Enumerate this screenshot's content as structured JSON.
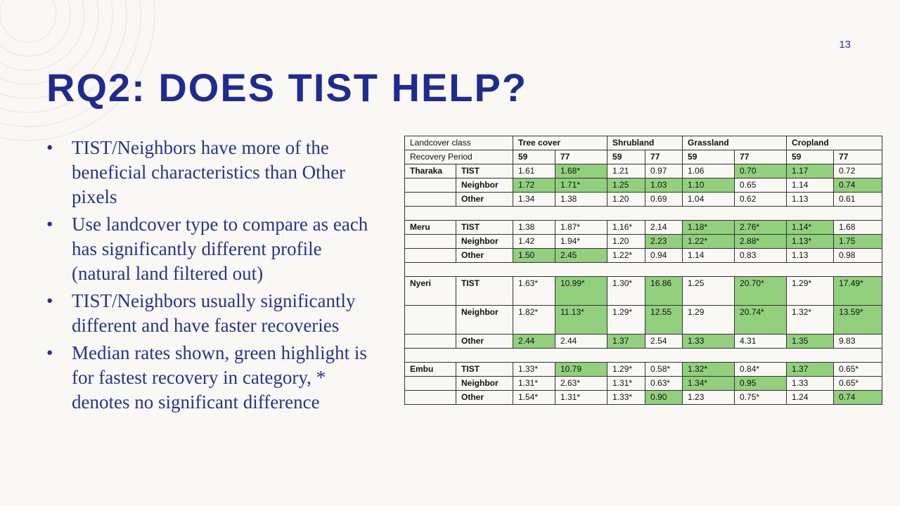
{
  "slide": {
    "number": "13",
    "title": "RQ2: DOES TIST HELP?",
    "accent": "#1f2b8f",
    "highlight": "#92d07e"
  },
  "bullets": [
    "TIST/Neighbors have more of the beneficial characteristics than Other pixels",
    "Use landcover type to compare as each has significantly different profile (natural land filtered out)",
    "TIST/Neighbors usually significantly different and have faster recoveries",
    "Median rates shown, green highlight is for fastest recovery in category, * denotes no significant difference"
  ],
  "bullet_symbol": "•",
  "table": {
    "header1": {
      "label": "Landcover class",
      "classes": [
        "Tree cover",
        "Shrubland",
        "Grassland",
        "Cropland"
      ]
    },
    "header2": {
      "label": "Recovery Period",
      "periods": [
        "59",
        "77",
        "59",
        "77",
        "59",
        "77",
        "59",
        "77"
      ]
    },
    "regions": [
      {
        "name": "Tharaka",
        "rows": [
          {
            "group": "TIST",
            "values": [
              "1.61",
              "1.68*",
              "1.21",
              "0.97",
              "1.06",
              "0.70",
              "1.17",
              "0.72"
            ],
            "green": [
              false,
              true,
              false,
              false,
              false,
              true,
              true,
              false
            ]
          },
          {
            "group": "Neighbor",
            "values": [
              "1.72",
              "1.71*",
              "1.25",
              "1.03",
              "1.10",
              "0.65",
              "1.14",
              "0.74"
            ],
            "green": [
              true,
              true,
              true,
              true,
              true,
              false,
              false,
              true
            ]
          },
          {
            "group": "Other",
            "values": [
              "1.34",
              "1.38",
              "1.20",
              "0.69",
              "1.04",
              "0.62",
              "1.13",
              "0.61"
            ],
            "green": [
              false,
              false,
              false,
              false,
              false,
              false,
              false,
              false
            ]
          }
        ]
      },
      {
        "name": "Meru",
        "rows": [
          {
            "group": "TIST",
            "values": [
              "1.38",
              "1.87*",
              "1.16*",
              "2.14",
              "1.18*",
              "2.76*",
              "1.14*",
              "1.68"
            ],
            "green": [
              false,
              false,
              false,
              false,
              true,
              true,
              true,
              false
            ]
          },
          {
            "group": "Neighbor",
            "values": [
              "1.42",
              "1.94*",
              "1.20",
              "2.23",
              "1.22*",
              "2.88*",
              "1.13*",
              "1.75"
            ],
            "green": [
              false,
              false,
              false,
              true,
              true,
              true,
              true,
              true
            ]
          },
          {
            "group": "Other",
            "values": [
              "1.50",
              "2.45",
              "1.22*",
              "0.94",
              "1.14",
              "0.83",
              "1.13",
              "0.98"
            ],
            "green": [
              true,
              true,
              false,
              false,
              false,
              false,
              false,
              false
            ]
          }
        ]
      },
      {
        "name": "Nyeri",
        "rows": [
          {
            "group": "TIST",
            "values": [
              "1.63*",
              "10.99*",
              "1.30*",
              "16.86",
              "1.25",
              "20.70*",
              "1.29*",
              "17.49*"
            ],
            "green": [
              false,
              true,
              false,
              true,
              false,
              true,
              false,
              true
            ]
          },
          {
            "group": "Neighbor",
            "values": [
              "1.82*",
              "11.13*",
              "1.29*",
              "12.55",
              "1.29",
              "20.74*",
              "1.32*",
              "13.59*"
            ],
            "green": [
              false,
              true,
              false,
              true,
              false,
              true,
              false,
              true
            ]
          },
          {
            "group": "Other",
            "values": [
              "2.44",
              "2.44",
              "1.37",
              "2.54",
              "1.33",
              "4.31",
              "1.35",
              "9.83"
            ],
            "green": [
              true,
              false,
              true,
              false,
              true,
              false,
              true,
              false
            ]
          }
        ]
      },
      {
        "name": "Embu",
        "rows": [
          {
            "group": "TIST",
            "values": [
              "1.33*",
              "10.79",
              "1.29*",
              "0.58*",
              "1.32*",
              "0.84*",
              "1.37",
              "0.65*"
            ],
            "green": [
              false,
              true,
              false,
              false,
              true,
              false,
              true,
              false
            ]
          },
          {
            "group": "Neighbor",
            "values": [
              "1.31*",
              "2.63*",
              "1.31*",
              "0.63*",
              "1.34*",
              "0.95",
              "1.33",
              "0.65*"
            ],
            "green": [
              false,
              false,
              false,
              false,
              true,
              true,
              false,
              false
            ]
          },
          {
            "group": "Other",
            "values": [
              "1.54*",
              "1.31*",
              "1.33*",
              "0.90",
              "1.23",
              "0.75*",
              "1.24",
              "0.74"
            ],
            "green": [
              false,
              false,
              false,
              true,
              false,
              false,
              false,
              true
            ]
          }
        ]
      }
    ]
  }
}
